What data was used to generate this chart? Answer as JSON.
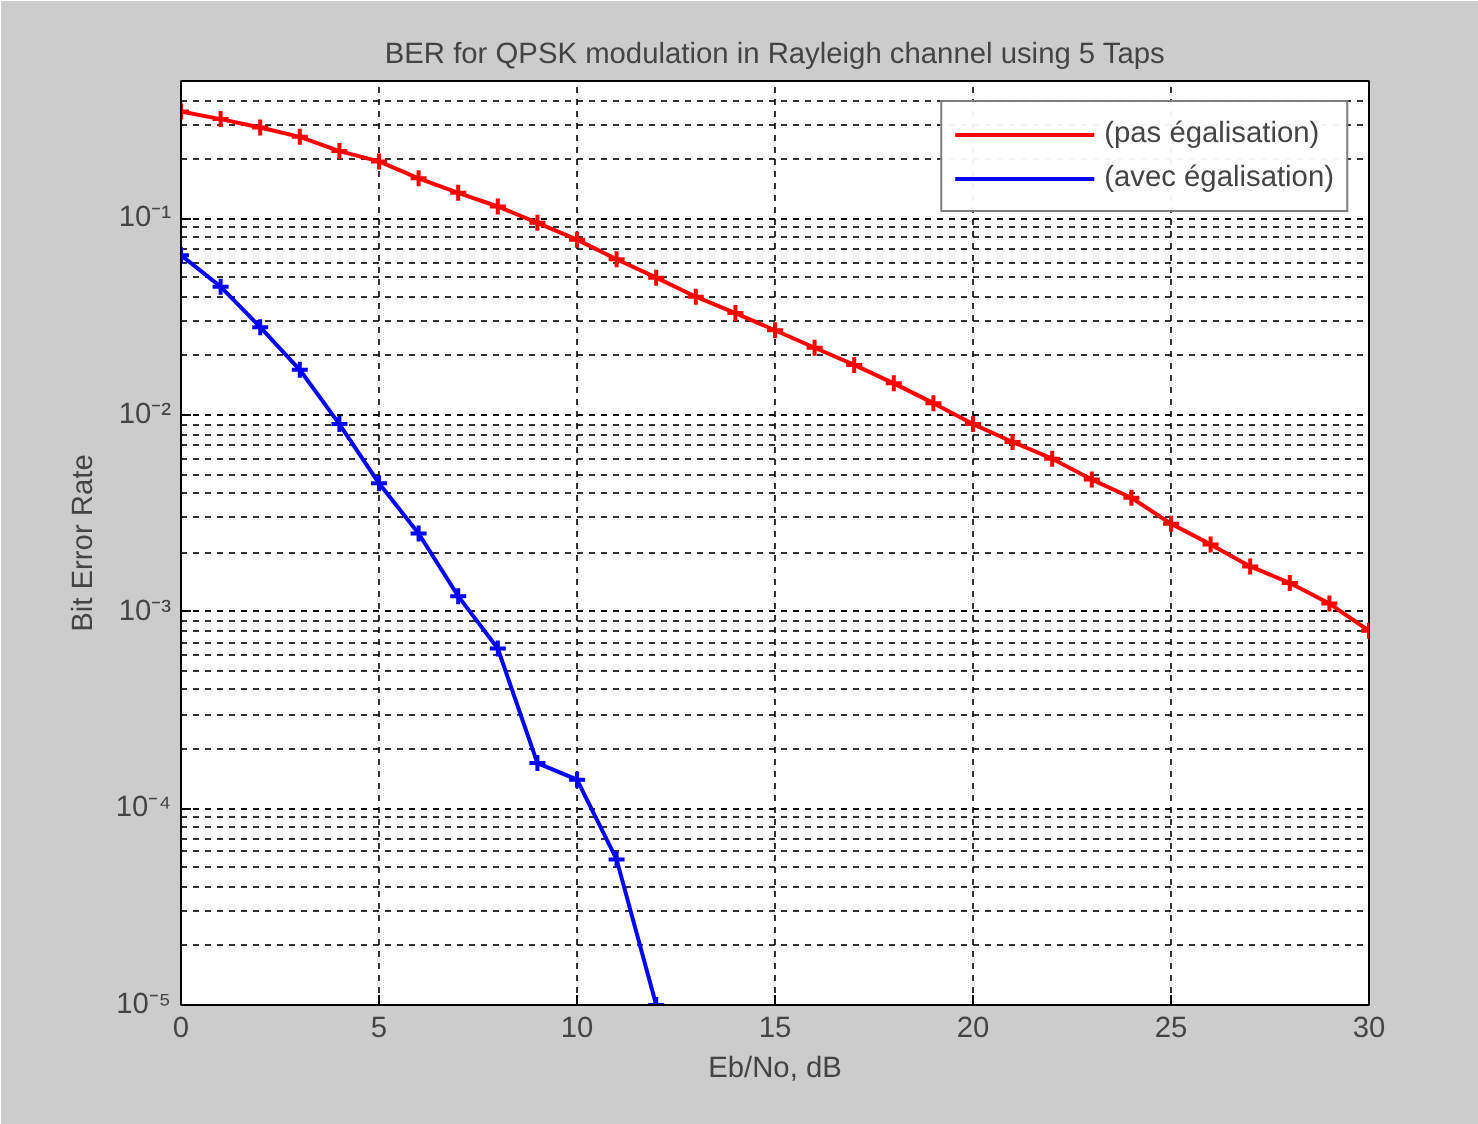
{
  "chart_data": {
    "type": "line",
    "title": "BER for QPSK modulation in Rayleigh channel using 5 Taps",
    "xlabel": "Eb/No, dB",
    "ylabel": "Bit Error Rate",
    "log": "y",
    "grid": true,
    "legend": "top right",
    "marker": "cross",
    "line_style": "solid",
    "xlim": [
      0,
      30
    ],
    "xticks": [
      0,
      5,
      10,
      15,
      20,
      25,
      30
    ],
    "ylim": [
      1e-05,
      0.5
    ],
    "yticks": [
      {
        "value": 1e-05,
        "label": "10⁻⁵"
      },
      {
        "value": 0.0001,
        "label": "10⁻⁴"
      },
      {
        "value": 0.001,
        "label": "10⁻³"
      },
      {
        "value": 0.01,
        "label": "10⁻²"
      },
      {
        "value": 0.1,
        "label": "10⁻¹"
      }
    ],
    "series": [
      {
        "name": "(pas égalisation)",
        "color": "#ff0000",
        "x": [
          0,
          1,
          2,
          3,
          4,
          5,
          6,
          7,
          8,
          9,
          10,
          11,
          12,
          13,
          14,
          15,
          16,
          17,
          18,
          19,
          20,
          21,
          22,
          23,
          24,
          25,
          26,
          27,
          28,
          29,
          30
        ],
        "values": [
          0.35,
          0.32,
          0.29,
          0.26,
          0.22,
          0.195,
          0.16,
          0.135,
          0.115,
          0.095,
          0.078,
          0.062,
          0.05,
          0.04,
          0.033,
          0.027,
          0.022,
          0.018,
          0.0145,
          0.0115,
          0.009,
          0.0073,
          0.006,
          0.0047,
          0.0038,
          0.0028,
          0.0022,
          0.0017,
          0.0014,
          0.0011,
          0.0008
        ]
      },
      {
        "name": "(avec égalisation)",
        "color": "#0000ff",
        "x": [
          0,
          1,
          2,
          3,
          4,
          5,
          6,
          7,
          8,
          9,
          10,
          11,
          12
        ],
        "values": [
          0.065,
          0.045,
          0.028,
          0.017,
          0.009,
          0.0045,
          0.0025,
          0.0012,
          0.00065,
          0.00017,
          0.00014,
          5.5e-05,
          1e-05
        ]
      }
    ]
  }
}
